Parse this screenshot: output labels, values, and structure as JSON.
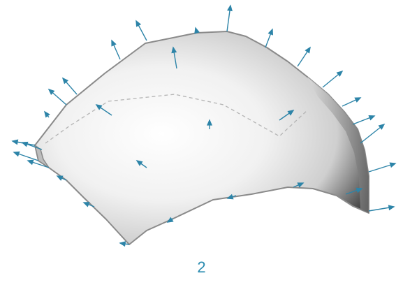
{
  "figure": {
    "label": "2"
  },
  "colors": {
    "arrow": "#2d84a8",
    "edge": "#8a8a8a",
    "seam": "#b4b4b4",
    "label": "#2a8bb0"
  },
  "icons": {
    "normal_vector": "arrow-icon"
  }
}
